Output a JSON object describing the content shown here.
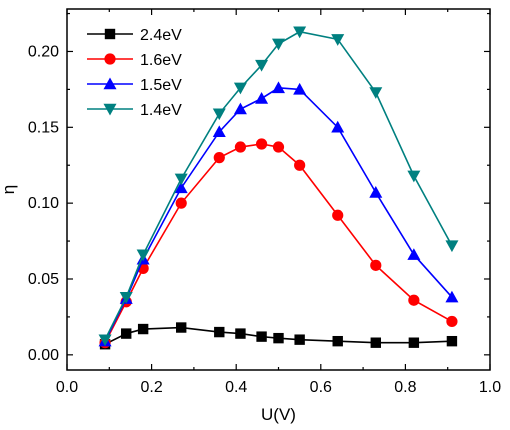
{
  "chart_data": {
    "type": "line",
    "xlabel": "U(V)",
    "ylabel": "η",
    "xlim": [
      0.0,
      1.0
    ],
    "ylim": [
      -0.01,
      0.228
    ],
    "x_ticks": [
      0.0,
      0.2,
      0.4,
      0.6,
      0.8,
      1.0
    ],
    "x_tick_labels": [
      "0.0",
      "0.2",
      "0.4",
      "0.6",
      "0.8",
      "1.0"
    ],
    "y_ticks": [
      0.0,
      0.05,
      0.1,
      0.15,
      0.2
    ],
    "y_tick_labels": [
      "0.00",
      "0.05",
      "0.10",
      "0.15",
      "0.20"
    ],
    "grid": false,
    "legend_position": "top-left",
    "series": [
      {
        "name": "2.4eV",
        "color": "#000000",
        "marker": "square",
        "points": [
          [
            0.09,
            0.007
          ],
          [
            0.14,
            0.014
          ],
          [
            0.18,
            0.017
          ],
          [
            0.27,
            0.018
          ],
          [
            0.36,
            0.015
          ],
          [
            0.41,
            0.014
          ],
          [
            0.46,
            0.012
          ],
          [
            0.5,
            0.011
          ],
          [
            0.55,
            0.01
          ],
          [
            0.64,
            0.009
          ],
          [
            0.73,
            0.008
          ],
          [
            0.82,
            0.008
          ],
          [
            0.91,
            0.009
          ]
        ]
      },
      {
        "name": "1.6eV",
        "color": "#ff0000",
        "marker": "circle",
        "points": [
          [
            0.09,
            0.008
          ],
          [
            0.14,
            0.035
          ],
          [
            0.18,
            0.057
          ],
          [
            0.27,
            0.1
          ],
          [
            0.36,
            0.13
          ],
          [
            0.41,
            0.137
          ],
          [
            0.46,
            0.139
          ],
          [
            0.5,
            0.137
          ],
          [
            0.55,
            0.125
          ],
          [
            0.64,
            0.092
          ],
          [
            0.73,
            0.059
          ],
          [
            0.82,
            0.036
          ],
          [
            0.91,
            0.022
          ]
        ]
      },
      {
        "name": "1.5eV",
        "color": "#0000ff",
        "marker": "triangle-up",
        "points": [
          [
            0.09,
            0.009
          ],
          [
            0.14,
            0.037
          ],
          [
            0.18,
            0.063
          ],
          [
            0.27,
            0.11
          ],
          [
            0.36,
            0.147
          ],
          [
            0.41,
            0.162
          ],
          [
            0.46,
            0.169
          ],
          [
            0.5,
            0.176
          ],
          [
            0.55,
            0.175
          ],
          [
            0.64,
            0.15
          ],
          [
            0.73,
            0.107
          ],
          [
            0.82,
            0.066
          ],
          [
            0.91,
            0.038
          ]
        ]
      },
      {
        "name": "1.4eV",
        "color": "#008080",
        "marker": "triangle-down",
        "points": [
          [
            0.09,
            0.01
          ],
          [
            0.14,
            0.038
          ],
          [
            0.18,
            0.066
          ],
          [
            0.27,
            0.116
          ],
          [
            0.36,
            0.159
          ],
          [
            0.41,
            0.176
          ],
          [
            0.46,
            0.191
          ],
          [
            0.5,
            0.205
          ],
          [
            0.55,
            0.213
          ],
          [
            0.64,
            0.208
          ],
          [
            0.73,
            0.173
          ],
          [
            0.82,
            0.118
          ],
          [
            0.91,
            0.072
          ]
        ]
      }
    ]
  }
}
